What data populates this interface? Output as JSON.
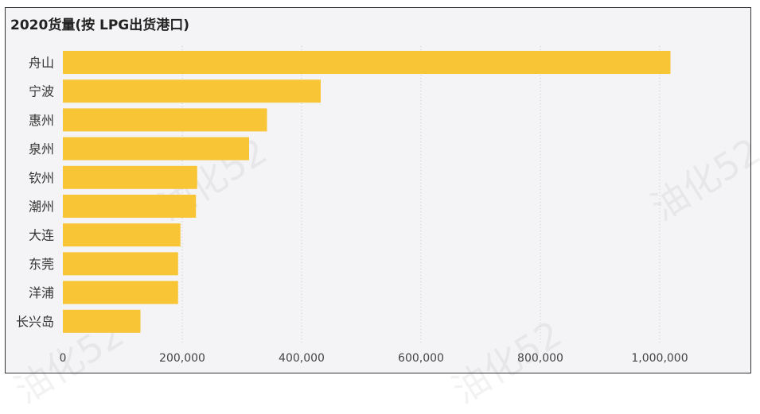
{
  "chart_data": {
    "type": "bar",
    "orientation": "horizontal",
    "title": "2020货量(按 LPG出货港口)",
    "categories": [
      "舟山",
      "宁波",
      "惠州",
      "泉州",
      "钦州",
      "潮州",
      "大连",
      "东莞",
      "洋浦",
      "长兴岛"
    ],
    "values": [
      1018000,
      432000,
      342000,
      312000,
      225000,
      223000,
      197000,
      193000,
      193000,
      130000
    ],
    "x_ticks": [
      0,
      200000,
      400000,
      600000,
      800000,
      1000000
    ],
    "x_tick_labels": [
      "0",
      "200,000",
      "400,000",
      "600,000",
      "800,000",
      "1,000,000"
    ],
    "xlim": [
      0,
      1150000
    ],
    "grid": "vertical dotted",
    "bar_color": "#f8c537"
  },
  "watermark": "油化52"
}
